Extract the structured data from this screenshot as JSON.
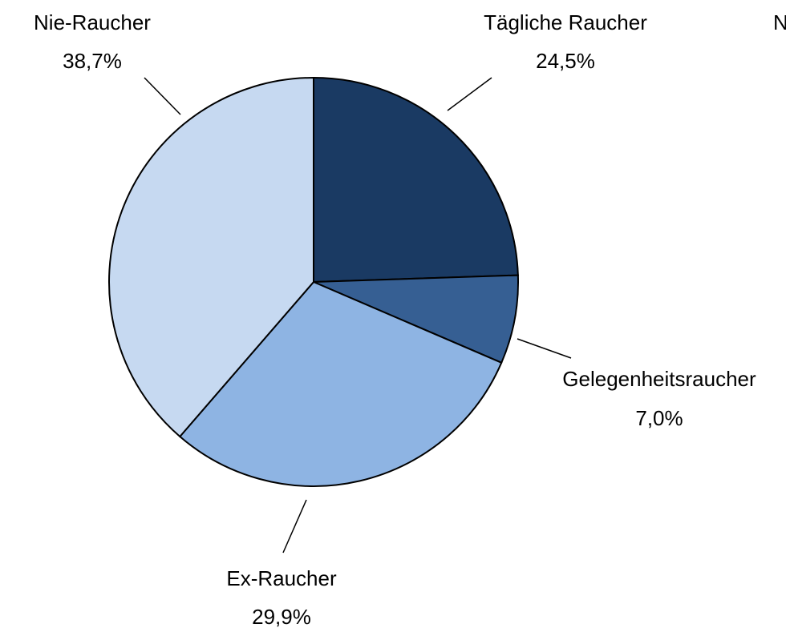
{
  "chart_data": {
    "type": "pie",
    "categories": [
      "Tägliche Raucher",
      "Gelegenheitsraucher",
      "Ex-Raucher",
      "Nie-Raucher"
    ],
    "values": [
      24.5,
      7.0,
      29.9,
      38.7
    ],
    "value_labels": [
      "24,5%",
      "7,0%",
      "29,9%",
      "38,7%"
    ],
    "colors": [
      "#1a3a63",
      "#365f93",
      "#8eb4e3",
      "#c6d9f1"
    ],
    "annotations": [
      "N"
    ]
  }
}
